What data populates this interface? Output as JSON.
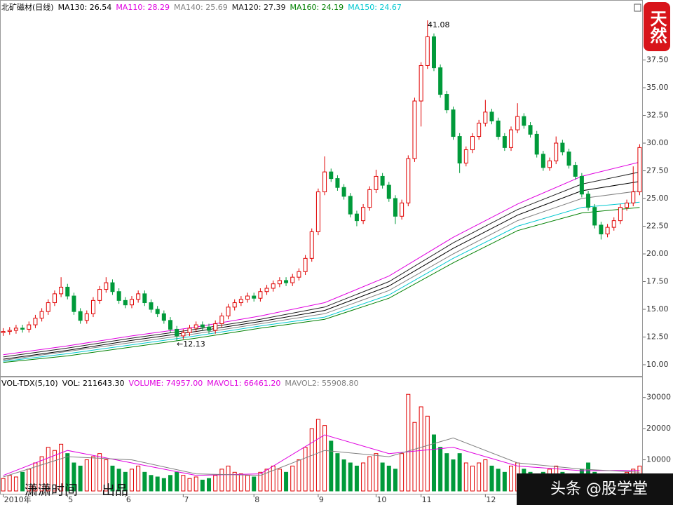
{
  "chart_data": [
    {
      "type": "candlestick",
      "title": "北矿磁材(日线)",
      "up_color": "#e00000",
      "down_color": "#009a3a",
      "x": [
        0,
        1,
        2,
        3,
        4,
        5,
        6,
        7,
        8,
        9,
        10,
        11,
        12,
        13,
        14,
        15,
        16,
        17,
        18,
        19,
        20,
        21,
        22,
        23,
        24,
        25,
        26,
        27,
        28,
        29,
        30,
        31,
        32,
        33,
        34,
        35,
        36,
        37,
        38,
        39,
        40,
        41,
        42,
        43,
        44,
        45,
        46,
        47,
        48,
        49,
        50,
        51,
        52,
        53,
        54,
        55,
        56,
        57,
        58,
        59,
        60,
        61,
        62,
        63,
        64,
        65,
        66,
        67,
        68,
        69,
        70,
        71,
        72,
        73,
        74,
        75,
        76,
        77,
        78,
        79,
        80,
        81,
        82,
        83,
        84,
        85,
        86,
        87,
        88,
        89,
        90,
        91,
        92,
        93,
        94,
        95,
        96,
        97,
        98,
        99
      ],
      "open": [
        12.9,
        13.0,
        13.1,
        13.3,
        13.2,
        13.6,
        14.2,
        14.8,
        15.6,
        16.4,
        17.0,
        16.2,
        14.8,
        14.0,
        14.6,
        15.8,
        16.8,
        17.4,
        16.6,
        15.8,
        15.4,
        15.9,
        16.4,
        15.6,
        15.0,
        14.6,
        14.0,
        13.2,
        12.6,
        12.9,
        13.3,
        13.6,
        13.4,
        13.1,
        13.7,
        14.4,
        15.2,
        15.6,
        15.9,
        16.2,
        16.0,
        16.6,
        16.9,
        17.3,
        17.6,
        17.4,
        17.9,
        18.4,
        19.6,
        22.0,
        25.6,
        27.4,
        26.8,
        26.0,
        25.2,
        23.6,
        23.0,
        24.2,
        25.8,
        27.0,
        26.2,
        25.0,
        23.4,
        24.6,
        28.6,
        33.8,
        37.0,
        39.6,
        36.8,
        34.4,
        33.0,
        30.6,
        28.2,
        29.4,
        30.6,
        31.8,
        32.8,
        32.0,
        30.6,
        29.6,
        31.2,
        32.4,
        31.6,
        30.8,
        29.0,
        27.8,
        28.4,
        30.0,
        29.2,
        28.0,
        27.0,
        25.4,
        24.2,
        22.6,
        21.8,
        22.4,
        23.0,
        24.2,
        24.6,
        25.6
      ],
      "high": [
        13.3,
        13.4,
        13.6,
        13.6,
        13.9,
        14.5,
        15.1,
        15.9,
        16.7,
        17.9,
        17.3,
        16.5,
        15.1,
        14.9,
        16.1,
        17.1,
        17.9,
        17.7,
        16.9,
        16.1,
        16.2,
        16.7,
        16.7,
        15.9,
        15.3,
        14.9,
        14.3,
        13.5,
        13.2,
        13.6,
        13.9,
        13.9,
        13.7,
        14.0,
        14.7,
        15.5,
        15.9,
        16.2,
        16.5,
        16.5,
        16.9,
        17.2,
        17.6,
        17.9,
        17.9,
        18.2,
        18.7,
        19.9,
        22.3,
        25.9,
        28.8,
        27.7,
        27.1,
        26.3,
        25.5,
        23.9,
        24.5,
        26.1,
        27.6,
        27.3,
        26.5,
        25.3,
        24.9,
        28.9,
        34.1,
        37.3,
        41.08,
        39.9,
        37.1,
        34.7,
        33.3,
        30.9,
        29.7,
        30.9,
        32.1,
        33.9,
        33.1,
        32.3,
        30.9,
        31.5,
        33.6,
        32.7,
        31.9,
        31.1,
        29.3,
        28.7,
        30.6,
        30.3,
        29.5,
        28.3,
        27.3,
        25.7,
        24.5,
        22.9,
        22.7,
        23.3,
        24.5,
        24.9,
        27.9,
        29.9
      ],
      "low": [
        12.6,
        12.7,
        12.8,
        12.9,
        12.9,
        13.3,
        13.9,
        14.5,
        15.3,
        16.1,
        15.9,
        14.5,
        13.7,
        13.7,
        14.3,
        15.5,
        16.5,
        16.3,
        15.5,
        15.1,
        15.1,
        15.6,
        15.3,
        14.7,
        14.3,
        13.7,
        12.9,
        12.13,
        12.3,
        12.6,
        13.0,
        13.1,
        12.8,
        12.8,
        13.4,
        14.1,
        14.9,
        15.3,
        15.6,
        15.7,
        15.7,
        16.3,
        16.6,
        17.0,
        17.1,
        17.1,
        17.6,
        18.1,
        19.3,
        21.7,
        25.3,
        26.5,
        25.7,
        24.9,
        23.3,
        22.5,
        22.7,
        23.9,
        25.5,
        25.9,
        24.7,
        22.7,
        23.1,
        24.3,
        28.3,
        31.5,
        36.7,
        36.5,
        34.1,
        32.7,
        30.3,
        27.3,
        27.9,
        29.1,
        30.3,
        31.5,
        31.7,
        30.3,
        29.3,
        29.3,
        30.9,
        31.3,
        30.5,
        28.7,
        27.5,
        27.5,
        28.1,
        28.9,
        27.7,
        26.7,
        25.1,
        23.9,
        22.3,
        21.3,
        21.5,
        22.1,
        22.7,
        23.9,
        24.3,
        25.3
      ],
      "close": [
        13.0,
        13.1,
        13.3,
        13.2,
        13.6,
        14.2,
        14.8,
        15.6,
        16.4,
        17.0,
        16.2,
        14.8,
        14.0,
        14.6,
        15.8,
        16.8,
        17.4,
        16.6,
        15.8,
        15.4,
        15.9,
        16.4,
        15.6,
        15.0,
        14.6,
        14.0,
        13.2,
        12.6,
        12.9,
        13.3,
        13.6,
        13.4,
        13.1,
        13.7,
        14.4,
        15.2,
        15.6,
        15.9,
        16.2,
        16.0,
        16.6,
        16.9,
        17.3,
        17.6,
        17.4,
        17.9,
        18.4,
        19.6,
        22.0,
        25.6,
        27.4,
        26.8,
        26.0,
        25.2,
        23.6,
        23.0,
        24.2,
        25.8,
        27.0,
        26.2,
        25.0,
        23.4,
        24.6,
        28.6,
        33.8,
        37.0,
        39.6,
        36.8,
        34.4,
        33.0,
        30.6,
        28.2,
        29.4,
        30.6,
        31.8,
        32.8,
        32.0,
        30.6,
        29.6,
        31.2,
        32.4,
        31.6,
        30.8,
        29.0,
        27.8,
        28.4,
        30.0,
        29.2,
        28.0,
        27.0,
        25.4,
        24.2,
        22.6,
        21.8,
        22.4,
        23.0,
        24.2,
        24.6,
        25.6,
        29.6
      ],
      "series": [
        {
          "name": "MA130: 26.54",
          "color": "#000000",
          "x": [
            0,
            10,
            20,
            30,
            40,
            50,
            60,
            70,
            80,
            90,
            99
          ],
          "values": [
            10.5,
            11.3,
            12.2,
            13.0,
            13.9,
            14.9,
            17.1,
            20.5,
            23.5,
            25.7,
            26.54
          ]
        },
        {
          "name": "MA110: 28.29",
          "color": "#e000e0",
          "x": [
            0,
            10,
            20,
            30,
            40,
            50,
            60,
            70,
            80,
            90,
            99
          ],
          "values": [
            10.9,
            11.7,
            12.6,
            13.4,
            14.4,
            15.6,
            18.0,
            21.5,
            24.5,
            27.0,
            28.29
          ]
        },
        {
          "name": "MA140: 25.69",
          "color": "#808080",
          "x": [
            0,
            10,
            20,
            30,
            40,
            50,
            60,
            70,
            80,
            90,
            99
          ],
          "values": [
            10.4,
            11.2,
            12.0,
            12.8,
            13.7,
            14.6,
            16.7,
            20.0,
            23.0,
            25.0,
            25.69
          ]
        },
        {
          "name": "MA120: 27.39",
          "color": "#202020",
          "x": [
            0,
            10,
            20,
            30,
            40,
            50,
            60,
            70,
            80,
            90,
            99
          ],
          "values": [
            10.7,
            11.5,
            12.4,
            13.2,
            14.1,
            15.2,
            17.5,
            21.0,
            24.0,
            26.3,
            27.39
          ]
        },
        {
          "name": "MA160: 24.19",
          "color": "#008000",
          "x": [
            0,
            10,
            20,
            30,
            40,
            50,
            60,
            70,
            80,
            90,
            99
          ],
          "values": [
            10.2,
            10.8,
            11.6,
            12.4,
            13.3,
            14.1,
            16.0,
            19.2,
            22.1,
            23.7,
            24.19
          ]
        },
        {
          "name": "MA150: 24.67",
          "color": "#00c8d0",
          "x": [
            0,
            10,
            20,
            30,
            40,
            50,
            60,
            70,
            80,
            90,
            99
          ],
          "values": [
            10.3,
            11.0,
            11.8,
            12.6,
            13.5,
            14.3,
            16.3,
            19.6,
            22.5,
            24.2,
            24.67
          ]
        }
      ],
      "xlim": [
        -0.5,
        99.5
      ],
      "xticks": [
        {
          "value": 0,
          "label": "2010年"
        },
        {
          "value": 10,
          "label": "5"
        },
        {
          "value": 19,
          "label": "6"
        },
        {
          "value": 28,
          "label": "7"
        },
        {
          "value": 39,
          "label": "8"
        },
        {
          "value": 49,
          "label": "9"
        },
        {
          "value": 58,
          "label": "10"
        },
        {
          "value": 65,
          "label": "11"
        },
        {
          "value": 75,
          "label": "12"
        }
      ],
      "ylim": [
        9.05,
        42.6
      ],
      "yticks": [
        {
          "value": 10,
          "label": "10.00"
        },
        {
          "value": 12.5,
          "label": "12.50"
        },
        {
          "value": 15,
          "label": "15.00"
        },
        {
          "value": 17.5,
          "label": "17.50"
        },
        {
          "value": 20,
          "label": "20.00"
        },
        {
          "value": 22.5,
          "label": "22.50"
        },
        {
          "value": 25,
          "label": "25.00"
        },
        {
          "value": 27.5,
          "label": "27.50"
        },
        {
          "value": 30,
          "label": "30.00"
        },
        {
          "value": 32.5,
          "label": "32.50"
        },
        {
          "value": 35,
          "label": "35.00"
        },
        {
          "value": 37.5,
          "label": "37.50"
        }
      ],
      "annotations": [
        "41.08",
        "←12.13"
      ]
    },
    {
      "type": "bar",
      "title": "VOL-TDX(5,10)",
      "subtitle": "VOL: 211643.30",
      "series": [
        {
          "name": "VOLUME: 74957.00",
          "type": "bar",
          "color": "#e000e0",
          "x": [
            0,
            1,
            2,
            3,
            4,
            5,
            6,
            7,
            8,
            9,
            10,
            11,
            12,
            13,
            14,
            15,
            16,
            17,
            18,
            19,
            20,
            21,
            22,
            23,
            24,
            25,
            26,
            27,
            28,
            29,
            30,
            31,
            32,
            33,
            34,
            35,
            36,
            37,
            38,
            39,
            40,
            41,
            42,
            43,
            44,
            45,
            46,
            47,
            48,
            49,
            50,
            51,
            52,
            53,
            54,
            55,
            56,
            57,
            58,
            59,
            60,
            61,
            62,
            63,
            64,
            65,
            66,
            67,
            68,
            69,
            70,
            71,
            72,
            73,
            74,
            75,
            76,
            77,
            78,
            79,
            80,
            81,
            82,
            83,
            84,
            85,
            86,
            87,
            88,
            89,
            90,
            91,
            92,
            93,
            94,
            95,
            96,
            97,
            98,
            99
          ],
          "values": [
            4000,
            5000,
            4500,
            6000,
            7000,
            9000,
            11000,
            14000,
            13000,
            15000,
            12000,
            9000,
            8000,
            10000,
            11000,
            12000,
            10000,
            8000,
            7000,
            6000,
            7000,
            8000,
            6000,
            5000,
            4500,
            4000,
            5000,
            6000,
            5000,
            4000,
            4500,
            3500,
            4000,
            5000,
            7000,
            8000,
            6000,
            5500,
            5000,
            4500,
            6000,
            7000,
            8000,
            7000,
            6000,
            8000,
            10000,
            14000,
            20000,
            23000,
            21000,
            16000,
            12000,
            10000,
            9000,
            8000,
            9000,
            11000,
            12000,
            9000,
            8000,
            7000,
            12000,
            31000,
            22000,
            27000,
            24000,
            18000,
            14000,
            12000,
            10000,
            12000,
            9000,
            8000,
            9000,
            10000,
            8000,
            7000,
            6000,
            8000,
            9000,
            7000,
            6000,
            5000,
            6000,
            7000,
            8000,
            6000,
            5000,
            5000,
            7000,
            9000,
            6000,
            5000,
            4000,
            4500,
            5000,
            6000,
            7000,
            8000
          ]
        },
        {
          "name": "MAVOL1: 66461.20",
          "type": "line",
          "color": "#e000e0",
          "x": [
            0,
            10,
            20,
            30,
            40,
            50,
            60,
            70,
            80,
            90,
            99
          ],
          "values": [
            5000,
            13000,
            9000,
            5000,
            5500,
            18000,
            12000,
            14000,
            8000,
            6500,
            6600
          ]
        },
        {
          "name": "MAVOL2: 55908.80",
          "type": "line",
          "color": "#808080",
          "x": [
            0,
            10,
            20,
            30,
            40,
            50,
            60,
            70,
            80,
            90,
            99
          ],
          "values": [
            4500,
            11000,
            10000,
            5500,
            5000,
            13000,
            11000,
            17000,
            9000,
            7000,
            6000
          ]
        }
      ],
      "xlim": [
        -0.5,
        99.5
      ],
      "ylim": [
        0,
        36000
      ],
      "yticks": [
        10000,
        20000,
        30000
      ]
    }
  ],
  "overlay": {
    "logo": "天然",
    "watermark": "潇潇时间",
    "watermark_suffix": "出品",
    "banner": "头条 @股学堂"
  }
}
